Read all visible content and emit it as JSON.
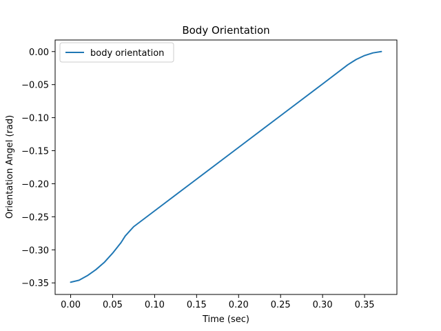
{
  "chart_data": {
    "type": "line",
    "title": "Body Orientation",
    "xlabel": "Time (sec)",
    "ylabel": "Orientation Angel (rad)",
    "xlim": [
      -0.0185,
      0.3885
    ],
    "ylim": [
      -0.3675,
      0.0175
    ],
    "xticks": [
      0.0,
      0.05,
      0.1,
      0.15,
      0.2,
      0.25,
      0.3,
      0.35
    ],
    "xtick_labels": [
      "0.00",
      "0.05",
      "0.10",
      "0.15",
      "0.20",
      "0.25",
      "0.30",
      "0.35"
    ],
    "yticks": [
      0.0,
      -0.05,
      -0.1,
      -0.15,
      -0.2,
      -0.25,
      -0.3,
      -0.35
    ],
    "ytick_labels": [
      "0.00",
      "−0.05",
      "−0.10",
      "−0.15",
      "−0.20",
      "−0.25",
      "−0.30",
      "−0.35"
    ],
    "grid": false,
    "legend_position": "top-left",
    "series": [
      {
        "name": "body orientation",
        "color": "#1f77b4",
        "x": [
          0.0,
          0.01,
          0.02,
          0.03,
          0.04,
          0.05,
          0.06,
          0.065,
          0.07,
          0.075,
          0.1,
          0.15,
          0.2,
          0.25,
          0.3,
          0.33,
          0.34,
          0.35,
          0.36,
          0.37
        ],
        "y": [
          -0.349,
          -0.346,
          -0.339,
          -0.33,
          -0.319,
          -0.305,
          -0.289,
          -0.279,
          -0.272,
          -0.265,
          -0.241,
          -0.193,
          -0.145,
          -0.097,
          -0.049,
          -0.02,
          -0.012,
          -0.006,
          -0.002,
          0.0
        ]
      }
    ]
  }
}
